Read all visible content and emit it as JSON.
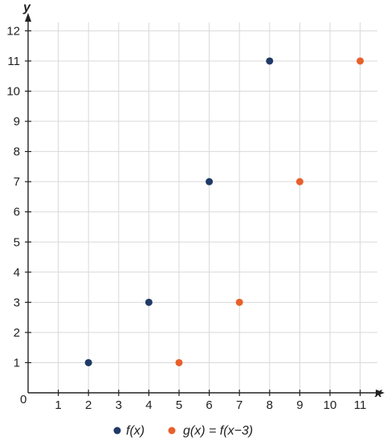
{
  "chart_data": {
    "type": "scatter",
    "xlabel": "x",
    "ylabel": "y",
    "origin_label": "0",
    "xlim": [
      0,
      11
    ],
    "ylim": [
      0,
      12
    ],
    "x_ticks": [
      1,
      2,
      3,
      4,
      5,
      6,
      7,
      8,
      9,
      10,
      11
    ],
    "y_ticks": [
      1,
      2,
      3,
      4,
      5,
      6,
      7,
      8,
      9,
      10,
      11,
      12
    ],
    "grid": true,
    "legend_position": "bottom",
    "series": [
      {
        "name": "f(x)",
        "color": "#1f3a66",
        "points": [
          [
            2,
            1
          ],
          [
            4,
            3
          ],
          [
            6,
            7
          ],
          [
            8,
            11
          ]
        ]
      },
      {
        "name": "g(x) = f(x−3)",
        "color": "#e8602c",
        "points": [
          [
            5,
            1
          ],
          [
            7,
            3
          ],
          [
            9,
            7
          ],
          [
            11,
            11
          ]
        ]
      }
    ]
  }
}
